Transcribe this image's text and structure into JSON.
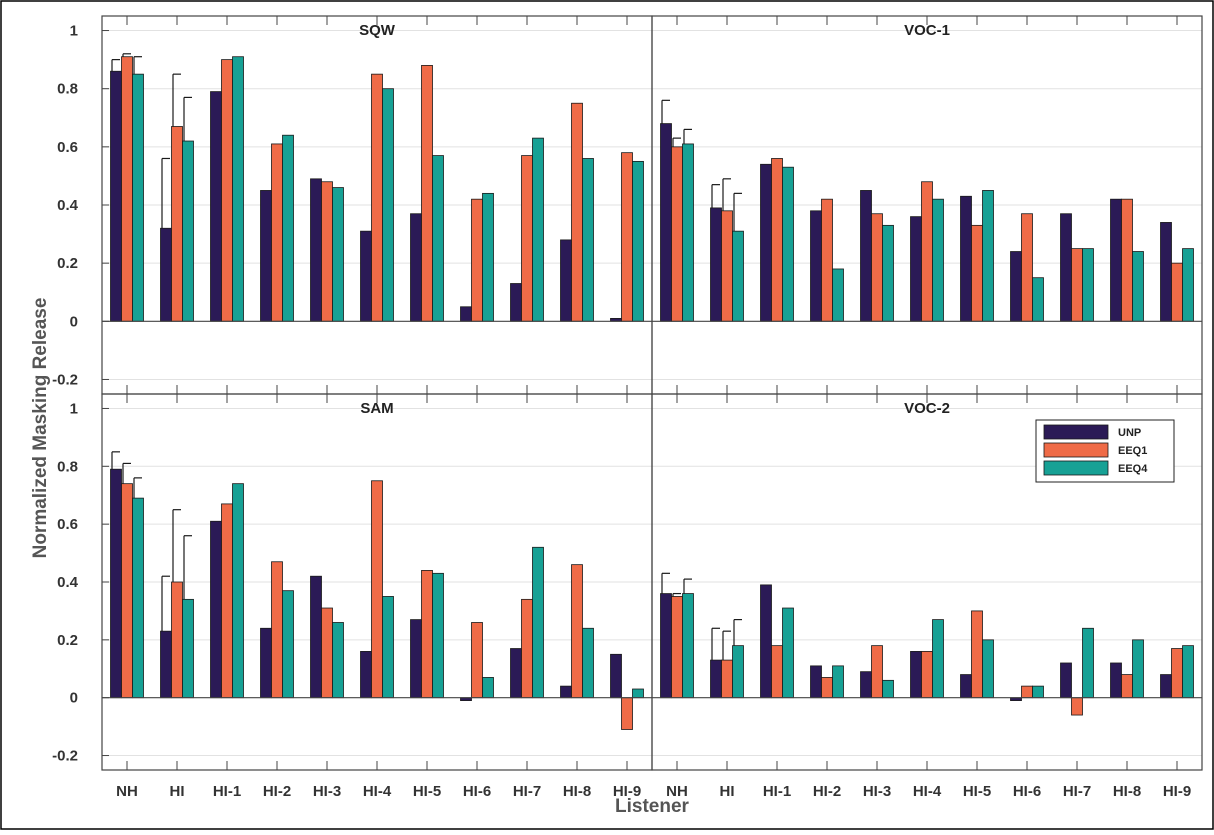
{
  "chart_data": {
    "type": "bar",
    "ylabel": "Normalized Masking Release",
    "xlabel": "Listener",
    "categories": [
      "NH",
      "HI",
      "HI-1",
      "HI-2",
      "HI-3",
      "HI-4",
      "HI-5",
      "HI-6",
      "HI-7",
      "HI-8",
      "HI-9"
    ],
    "ylim": [
      -0.25,
      1.05
    ],
    "yticks": [
      -0.2,
      0,
      0.2,
      0.4,
      0.6,
      0.8,
      1
    ],
    "ytick_labels": [
      "-0.2",
      "0",
      "0.2",
      "0.4",
      "0.6",
      "0.8",
      "1"
    ],
    "grid": true,
    "legend": {
      "placement": "top-right",
      "panel": "VOC-2",
      "entries": [
        "UNP",
        "EEQ1",
        "EEQ4"
      ]
    },
    "colors": {
      "UNP": "#2b1a56",
      "EEQ1": "#ef6b47",
      "EEQ4": "#17a195",
      "grid": "#e2e2e2",
      "axis": "#444444"
    },
    "panels": [
      {
        "title": "SQW",
        "series": [
          {
            "name": "UNP",
            "values": [
              0.86,
              0.32,
              0.79,
              0.45,
              0.49,
              0.31,
              0.37,
              0.05,
              0.13,
              0.28,
              0.01
            ]
          },
          {
            "name": "EEQ1",
            "values": [
              0.91,
              0.67,
              0.9,
              0.61,
              0.48,
              0.85,
              0.88,
              0.42,
              0.57,
              0.75,
              0.58
            ]
          },
          {
            "name": "EEQ4",
            "values": [
              0.85,
              0.62,
              0.91,
              0.64,
              0.46,
              0.8,
              0.57,
              0.44,
              0.63,
              0.56,
              0.55
            ]
          }
        ],
        "error_bars": {
          "NH": [
            0.9,
            0.92,
            0.91
          ],
          "HI": [
            0.56,
            0.85,
            0.77
          ]
        }
      },
      {
        "title": "VOC-1",
        "series": [
          {
            "name": "UNP",
            "values": [
              0.68,
              0.39,
              0.54,
              0.38,
              0.45,
              0.36,
              0.43,
              0.24,
              0.37,
              0.42,
              0.34
            ]
          },
          {
            "name": "EEQ1",
            "values": [
              0.6,
              0.38,
              0.56,
              0.42,
              0.37,
              0.48,
              0.33,
              0.37,
              0.25,
              0.42,
              0.2
            ]
          },
          {
            "name": "EEQ4",
            "values": [
              0.61,
              0.31,
              0.53,
              0.18,
              0.33,
              0.42,
              0.45,
              0.15,
              0.25,
              0.24,
              0.25
            ]
          }
        ],
        "error_bars": {
          "NH": [
            0.76,
            0.63,
            0.66
          ],
          "HI": [
            0.47,
            0.49,
            0.44
          ]
        }
      },
      {
        "title": "SAM",
        "series": [
          {
            "name": "UNP",
            "values": [
              0.79,
              0.23,
              0.61,
              0.24,
              0.42,
              0.16,
              0.27,
              -0.01,
              0.17,
              0.04,
              0.15
            ]
          },
          {
            "name": "EEQ1",
            "values": [
              0.74,
              0.4,
              0.67,
              0.47,
              0.31,
              0.75,
              0.44,
              0.26,
              0.34,
              0.46,
              -0.11
            ]
          },
          {
            "name": "EEQ4",
            "values": [
              0.69,
              0.34,
              0.74,
              0.37,
              0.26,
              0.35,
              0.43,
              0.07,
              0.52,
              0.24,
              0.03
            ]
          }
        ],
        "error_bars": {
          "NH": [
            0.85,
            0.81,
            0.76
          ],
          "HI": [
            0.42,
            0.65,
            0.56
          ]
        }
      },
      {
        "title": "VOC-2",
        "series": [
          {
            "name": "UNP",
            "values": [
              0.36,
              0.13,
              0.39,
              0.11,
              0.09,
              0.16,
              0.08,
              -0.01,
              0.12,
              0.12,
              0.08
            ]
          },
          {
            "name": "EEQ1",
            "values": [
              0.35,
              0.13,
              0.18,
              0.07,
              0.18,
              0.16,
              0.3,
              0.04,
              -0.06,
              0.08,
              0.17
            ]
          },
          {
            "name": "EEQ4",
            "values": [
              0.36,
              0.18,
              0.31,
              0.11,
              0.06,
              0.27,
              0.2,
              0.04,
              0.24,
              0.2,
              0.18
            ]
          }
        ],
        "error_bars": {
          "NH": [
            0.43,
            0.36,
            0.41
          ],
          "HI": [
            0.24,
            0.23,
            0.27
          ]
        }
      }
    ]
  }
}
